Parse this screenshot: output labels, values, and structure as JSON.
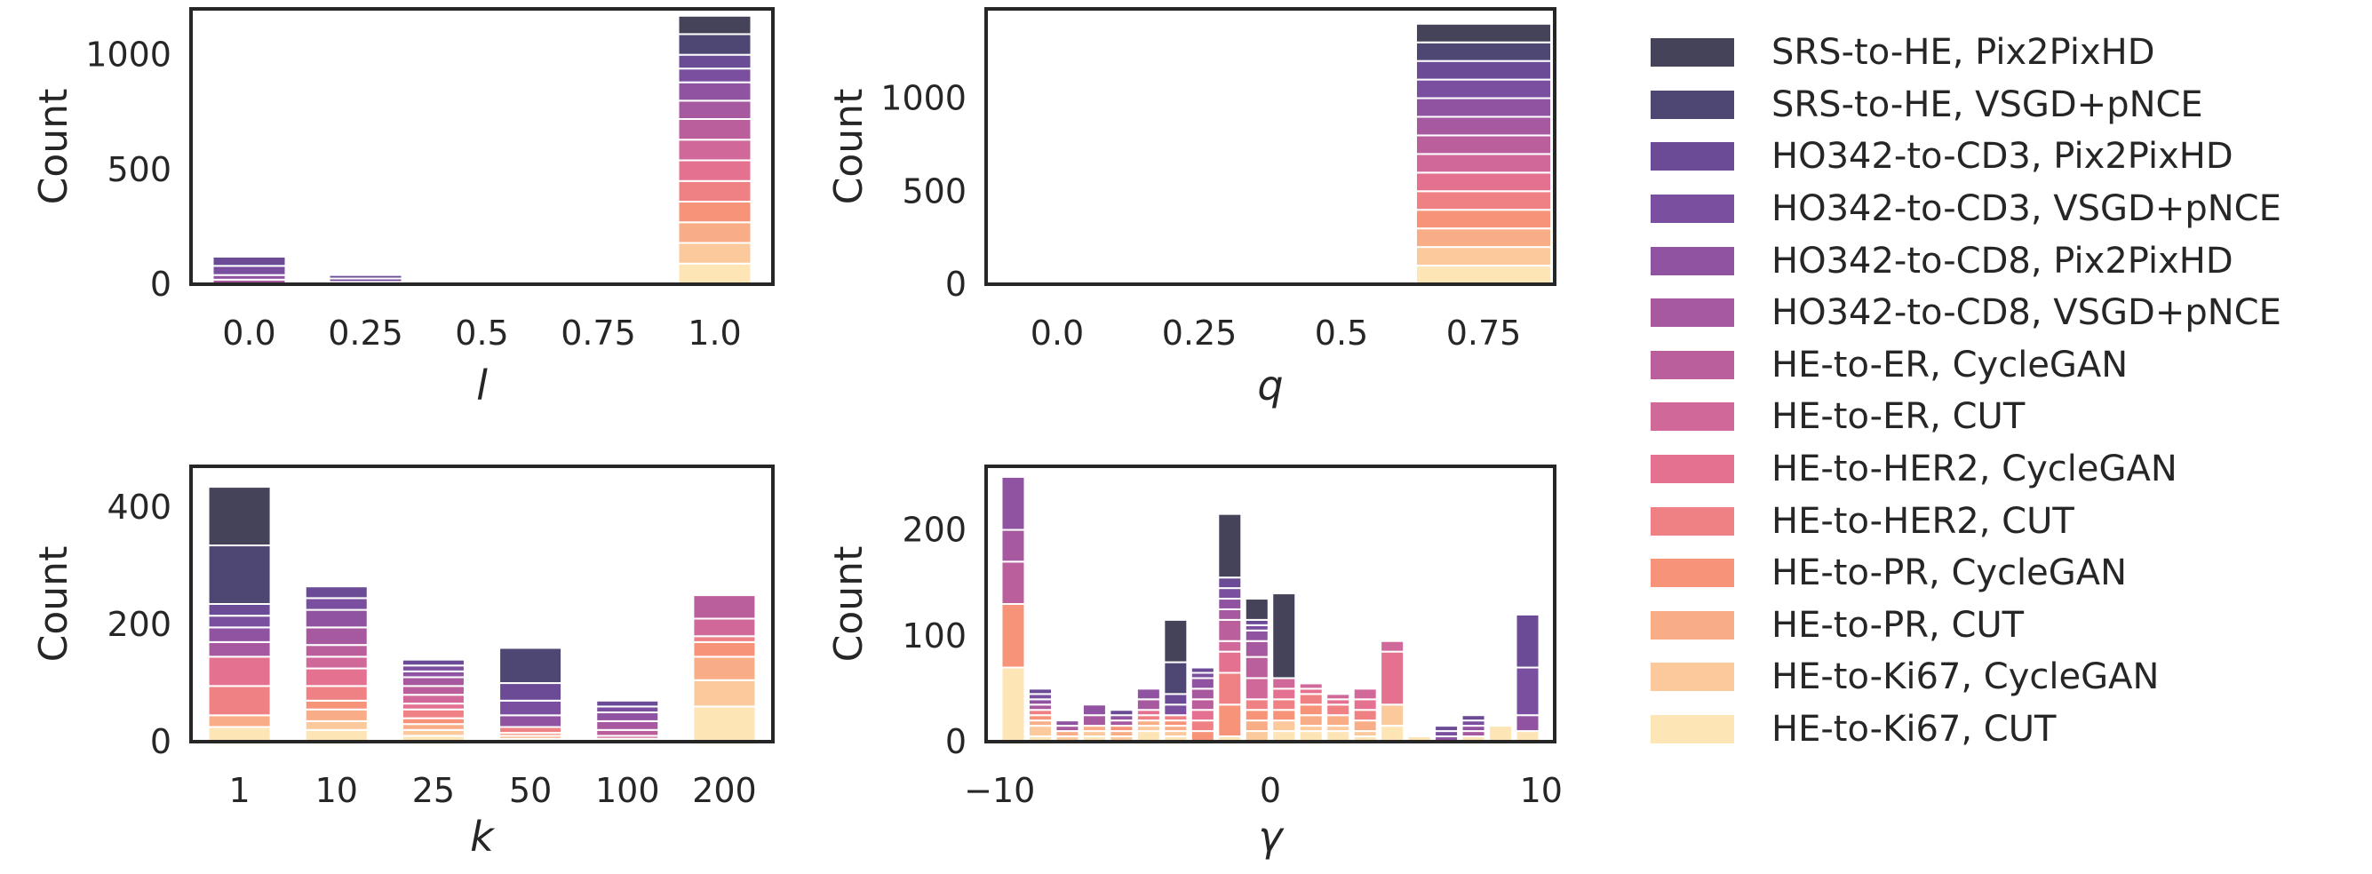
{
  "legend": [
    {
      "label": "SRS-to-HE, Pix2PixHD",
      "color": "#45435a"
    },
    {
      "label": "SRS-to-HE, VSGD+pNCE",
      "color": "#4e4673"
    },
    {
      "label": "HO342-to-CD3, Pix2PixHD",
      "color": "#6b4b96"
    },
    {
      "label": "HO342-to-CD3, VSGD+pNCE",
      "color": "#7a4f9f"
    },
    {
      "label": "HO342-to-CD8, Pix2PixHD",
      "color": "#9053a2"
    },
    {
      "label": "HO342-to-CD8, VSGD+pNCE",
      "color": "#a7599f"
    },
    {
      "label": "HE-to-ER, CycleGAN",
      "color": "#bb5f9c"
    },
    {
      "label": "HE-to-ER, CUT",
      "color": "#d0689a"
    },
    {
      "label": "HE-to-HER2, CycleGAN",
      "color": "#e3718f"
    },
    {
      "label": "HE-to-HER2, CUT",
      "color": "#ef8084"
    },
    {
      "label": "HE-to-PR, CycleGAN",
      "color": "#f69379"
    },
    {
      "label": "HE-to-PR, CUT",
      "color": "#f9ad86"
    },
    {
      "label": "HE-to-Ki67, CycleGAN",
      "color": "#fbc99b"
    },
    {
      "label": "HE-to-Ki67, CUT",
      "color": "#fde5b5"
    }
  ],
  "chart_data": [
    {
      "type": "bar",
      "stacked": true,
      "xlabel": "l",
      "ylabel": "Count",
      "categories": [
        "0.0",
        "0.25",
        "0.5",
        "0.75",
        "1.0"
      ],
      "ylim": [
        0,
        1200
      ],
      "yticks": [
        0,
        500,
        1000
      ],
      "series": [
        {
          "name": "SRS-to-HE, Pix2PixHD",
          "values": [
            0,
            0,
            0,
            0,
            80
          ]
        },
        {
          "name": "SRS-to-HE, VSGD+pNCE",
          "values": [
            0,
            0,
            0,
            0,
            90
          ]
        },
        {
          "name": "HO342-to-CD3, Pix2PixHD",
          "values": [
            40,
            15,
            0,
            0,
            60
          ]
        },
        {
          "name": "HO342-to-CD3, VSGD+pNCE",
          "values": [
            40,
            15,
            0,
            0,
            60
          ]
        },
        {
          "name": "HO342-to-CD8, Pix2PixHD",
          "values": [
            20,
            5,
            0,
            0,
            80
          ]
        },
        {
          "name": "HO342-to-CD8, VSGD+pNCE",
          "values": [
            20,
            5,
            0,
            0,
            80
          ]
        },
        {
          "name": "HE-to-ER, CycleGAN",
          "values": [
            0,
            0,
            0,
            0,
            90
          ]
        },
        {
          "name": "HE-to-ER, CUT",
          "values": [
            0,
            0,
            0,
            0,
            90
          ]
        },
        {
          "name": "HE-to-HER2, CycleGAN",
          "values": [
            0,
            0,
            0,
            0,
            90
          ]
        },
        {
          "name": "HE-to-HER2, CUT",
          "values": [
            0,
            0,
            0,
            0,
            90
          ]
        },
        {
          "name": "HE-to-PR, CycleGAN",
          "values": [
            0,
            0,
            0,
            0,
            90
          ]
        },
        {
          "name": "HE-to-PR, CUT",
          "values": [
            0,
            0,
            0,
            0,
            90
          ]
        },
        {
          "name": "HE-to-Ki67, CycleGAN",
          "values": [
            0,
            0,
            0,
            0,
            90
          ]
        },
        {
          "name": "HE-to-Ki67, CUT",
          "values": [
            0,
            0,
            0,
            0,
            90
          ]
        }
      ]
    },
    {
      "type": "bar",
      "stacked": true,
      "xlabel": "q",
      "ylabel": "Count",
      "categories": [
        "0.0",
        "0.25",
        "0.5",
        "0.75"
      ],
      "ylim": [
        0,
        1480
      ],
      "yticks": [
        0,
        500,
        1000
      ],
      "series": [
        {
          "name": "SRS-to-HE, Pix2PixHD",
          "values": [
            0,
            0,
            0,
            100
          ]
        },
        {
          "name": "SRS-to-HE, VSGD+pNCE",
          "values": [
            0,
            0,
            0,
            100
          ]
        },
        {
          "name": "HO342-to-CD3, Pix2PixHD",
          "values": [
            0,
            0,
            0,
            100
          ]
        },
        {
          "name": "HO342-to-CD3, VSGD+pNCE",
          "values": [
            0,
            0,
            0,
            100
          ]
        },
        {
          "name": "HO342-to-CD8, Pix2PixHD",
          "values": [
            0,
            0,
            0,
            100
          ]
        },
        {
          "name": "HO342-to-CD8, VSGD+pNCE",
          "values": [
            0,
            0,
            0,
            100
          ]
        },
        {
          "name": "HE-to-ER, CycleGAN",
          "values": [
            0,
            0,
            0,
            100
          ]
        },
        {
          "name": "HE-to-ER, CUT",
          "values": [
            0,
            0,
            0,
            100
          ]
        },
        {
          "name": "HE-to-HER2, CycleGAN",
          "values": [
            0,
            0,
            0,
            100
          ]
        },
        {
          "name": "HE-to-HER2, CUT",
          "values": [
            0,
            0,
            0,
            100
          ]
        },
        {
          "name": "HE-to-PR, CycleGAN",
          "values": [
            0,
            0,
            0,
            100
          ]
        },
        {
          "name": "HE-to-PR, CUT",
          "values": [
            0,
            0,
            0,
            100
          ]
        },
        {
          "name": "HE-to-Ki67, CycleGAN",
          "values": [
            0,
            0,
            0,
            100
          ]
        },
        {
          "name": "HE-to-Ki67, CUT",
          "values": [
            0,
            0,
            0,
            100
          ]
        }
      ]
    },
    {
      "type": "bar",
      "stacked": true,
      "xlabel": "k",
      "ylabel": "Count",
      "categories": [
        "1",
        "10",
        "25",
        "50",
        "100",
        "200"
      ],
      "ylim": [
        0,
        470
      ],
      "yticks": [
        0,
        200,
        400
      ],
      "series": [
        {
          "name": "SRS-to-HE, Pix2PixHD",
          "values": [
            100,
            0,
            0,
            0,
            0,
            0
          ]
        },
        {
          "name": "SRS-to-HE, VSGD+pNCE",
          "values": [
            100,
            0,
            0,
            60,
            0,
            0
          ]
        },
        {
          "name": "HO342-to-CD3, Pix2PixHD",
          "values": [
            20,
            20,
            10,
            30,
            10,
            0
          ]
        },
        {
          "name": "HO342-to-CD3, VSGD+pNCE",
          "values": [
            20,
            20,
            10,
            25,
            10,
            0
          ]
        },
        {
          "name": "HO342-to-CD8, Pix2PixHD",
          "values": [
            25,
            30,
            10,
            20,
            15,
            0
          ]
        },
        {
          "name": "HO342-to-CD8, VSGD+pNCE",
          "values": [
            25,
            30,
            15,
            0,
            15,
            0
          ]
        },
        {
          "name": "HE-to-ER, CycleGAN",
          "values": [
            0,
            20,
            15,
            0,
            10,
            40
          ]
        },
        {
          "name": "HE-to-ER, CUT",
          "values": [
            0,
            20,
            15,
            0,
            5,
            30
          ]
        },
        {
          "name": "HE-to-HER2, CycleGAN",
          "values": [
            50,
            30,
            10,
            0,
            0,
            0
          ]
        },
        {
          "name": "HE-to-HER2, CUT",
          "values": [
            50,
            25,
            15,
            10,
            0,
            10
          ]
        },
        {
          "name": "HE-to-PR, CycleGAN",
          "values": [
            0,
            15,
            10,
            5,
            0,
            25
          ]
        },
        {
          "name": "HE-to-PR, CUT",
          "values": [
            20,
            20,
            10,
            5,
            0,
            40
          ]
        },
        {
          "name": "HE-to-Ki67, CycleGAN",
          "values": [
            0,
            15,
            10,
            0,
            0,
            45
          ]
        },
        {
          "name": "HE-to-Ki67, CUT",
          "values": [
            25,
            20,
            10,
            5,
            5,
            60
          ]
        }
      ]
    },
    {
      "type": "bar",
      "stacked": true,
      "xlabel": "γ",
      "ylabel": "Count",
      "x": [
        -9.5,
        -8.5,
        -7.5,
        -6.5,
        -5.5,
        -4.5,
        -3.5,
        -2.5,
        -1.5,
        -0.5,
        0.5,
        1.5,
        2.5,
        3.5,
        4.5,
        5.5,
        6.5,
        7.5,
        8.5,
        9.5
      ],
      "xlim": [
        -10.5,
        10.5
      ],
      "xticks": [
        -10,
        0,
        10
      ],
      "xticklabels": [
        "−10",
        "0",
        "10"
      ],
      "ylim": [
        0,
        260
      ],
      "yticks": [
        0,
        100,
        200
      ],
      "series": [
        {
          "name": "SRS-to-HE, Pix2PixHD",
          "values": [
            0,
            0,
            0,
            0,
            0,
            0,
            40,
            0,
            60,
            20,
            80,
            0,
            0,
            0,
            0,
            0,
            0,
            0,
            0,
            0
          ]
        },
        {
          "name": "SRS-to-HE, VSGD+pNCE",
          "values": [
            0,
            0,
            0,
            0,
            0,
            0,
            30,
            0,
            0,
            0,
            0,
            0,
            0,
            0,
            0,
            0,
            0,
            0,
            0,
            0
          ]
        },
        {
          "name": "HO342-to-CD3, Pix2PixHD",
          "values": [
            0,
            5,
            0,
            0,
            5,
            0,
            10,
            5,
            10,
            5,
            0,
            0,
            0,
            0,
            0,
            0,
            5,
            5,
            0,
            50
          ]
        },
        {
          "name": "HO342-to-CD3, VSGD+pNCE",
          "values": [
            0,
            5,
            0,
            0,
            0,
            0,
            10,
            5,
            10,
            5,
            0,
            0,
            0,
            0,
            0,
            0,
            5,
            5,
            0,
            45
          ]
        },
        {
          "name": "HO342-to-CD8, Pix2PixHD",
          "values": [
            50,
            5,
            5,
            10,
            5,
            10,
            0,
            10,
            10,
            10,
            0,
            0,
            0,
            0,
            0,
            0,
            5,
            5,
            0,
            15
          ]
        },
        {
          "name": "HO342-to-CD8, VSGD+pNCE",
          "values": [
            30,
            5,
            5,
            10,
            5,
            10,
            0,
            10,
            10,
            15,
            0,
            0,
            0,
            0,
            0,
            0,
            0,
            5,
            0,
            0
          ]
        },
        {
          "name": "HE-to-ER, CycleGAN",
          "values": [
            40,
            0,
            0,
            0,
            0,
            0,
            0,
            10,
            20,
            20,
            0,
            0,
            0,
            0,
            0,
            0,
            0,
            0,
            0,
            0
          ]
        },
        {
          "name": "HE-to-ER, CUT",
          "values": [
            0,
            0,
            0,
            0,
            0,
            0,
            0,
            0,
            10,
            20,
            10,
            5,
            5,
            10,
            10,
            0,
            0,
            0,
            0,
            0
          ]
        },
        {
          "name": "HE-to-HER2, CycleGAN",
          "values": [
            0,
            0,
            0,
            0,
            0,
            5,
            0,
            10,
            20,
            0,
            10,
            5,
            5,
            10,
            50,
            0,
            0,
            0,
            0,
            0
          ]
        },
        {
          "name": "HE-to-HER2, CUT",
          "values": [
            0,
            5,
            0,
            0,
            0,
            5,
            5,
            10,
            30,
            10,
            10,
            10,
            10,
            10,
            0,
            0,
            0,
            0,
            0,
            0
          ]
        },
        {
          "name": "HE-to-PR, CycleGAN",
          "values": [
            60,
            5,
            0,
            0,
            5,
            0,
            5,
            10,
            30,
            10,
            10,
            10,
            0,
            0,
            0,
            0,
            0,
            0,
            0,
            0
          ]
        },
        {
          "name": "HE-to-PR, CUT",
          "values": [
            0,
            5,
            5,
            5,
            5,
            5,
            5,
            0,
            0,
            10,
            0,
            10,
            10,
            10,
            0,
            0,
            0,
            0,
            0,
            0
          ]
        },
        {
          "name": "HE-to-Ki67, CycleGAN",
          "values": [
            0,
            10,
            5,
            5,
            5,
            5,
            5,
            0,
            0,
            10,
            10,
            5,
            5,
            5,
            20,
            0,
            0,
            0,
            0,
            0
          ]
        },
        {
          "name": "HE-to-Ki67, CUT",
          "values": [
            70,
            5,
            0,
            5,
            0,
            10,
            5,
            0,
            5,
            0,
            10,
            10,
            10,
            5,
            15,
            5,
            0,
            5,
            15,
            10
          ]
        }
      ]
    }
  ]
}
